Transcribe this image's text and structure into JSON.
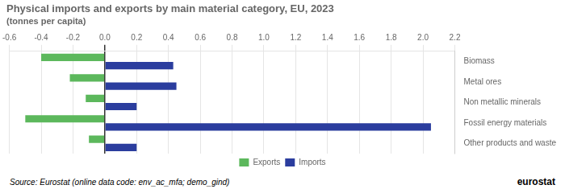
{
  "chart_data": {
    "type": "bar",
    "orientation": "horizontal",
    "title": "Physical imports and exports by main material category, EU, 2023",
    "subtitle": "(tonnes per capita)",
    "categories": [
      "Biomass",
      "Metal ores",
      "Non metallic minerals",
      "Fossil energy materials",
      "Other products and waste"
    ],
    "series": [
      {
        "name": "Exports",
        "color": "#5cb85c",
        "values": [
          -0.4,
          -0.22,
          -0.12,
          -0.5,
          -0.1
        ]
      },
      {
        "name": "Imports",
        "color": "#2b3d9e",
        "values": [
          0.43,
          0.45,
          0.2,
          2.05,
          0.2
        ]
      }
    ],
    "xlim": [
      -0.6,
      2.2
    ],
    "xticks": [
      -0.6,
      -0.4,
      -0.2,
      {
        "value": 0.0,
        "label": "0.0"
      },
      0.2,
      0.4,
      0.6,
      0.8,
      {
        "value": 1.0,
        "label": "1.0"
      },
      1.2,
      1.4,
      1.6,
      1.8,
      {
        "value": 2.0,
        "label": "2.0"
      },
      2.2
    ],
    "grid": true,
    "legend": "bottom",
    "annotations": [
      "Source: Eurostat (online data code: env_ac_mfa; demo_gind)",
      "eurostat"
    ]
  }
}
